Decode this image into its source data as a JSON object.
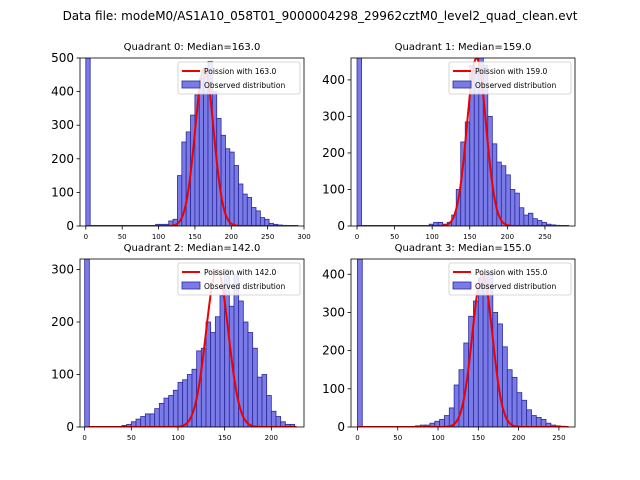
{
  "suptitle": "Data file: modeM0/AS1A10_058T01_9000004298_29962cztM0_level2_quad_clean.evt",
  "colors": {
    "bar_fill": "#7b7be8",
    "bar_edge": "#2a2a9a",
    "poisson_line": "#ee0000",
    "axis": "#000000"
  },
  "chart_data": [
    {
      "type": "bar",
      "title": "Quadrant 0: Median=163.0",
      "median": 163.0,
      "bin_width": 6,
      "bin_starts": [
        0,
        96,
        102,
        108,
        114,
        120,
        126,
        132,
        138,
        144,
        150,
        156,
        162,
        168,
        174,
        180,
        186,
        192,
        198,
        204,
        210,
        216,
        222,
        228,
        234,
        240,
        246,
        252,
        258,
        264,
        270
      ],
      "values": [
        500,
        5,
        5,
        5,
        15,
        20,
        150,
        250,
        280,
        330,
        390,
        440,
        470,
        490,
        400,
        320,
        270,
        230,
        220,
        180,
        125,
        95,
        85,
        55,
        45,
        25,
        20,
        8,
        5,
        3,
        2
      ],
      "poisson_mean": 163.0,
      "poisson_peak": 470,
      "xlim": [
        -8,
        300
      ],
      "ylim": [
        0,
        500
      ],
      "xticks": [
        0,
        50,
        100,
        150,
        200,
        250,
        300
      ],
      "xtick_labels": [
        "0",
        "50",
        "100",
        "150",
        "200",
        "250",
        "300"
      ],
      "yticks": [
        0,
        100,
        200,
        300,
        400,
        500
      ],
      "ytick_labels": [
        "0",
        "100",
        "200",
        "300",
        "400",
        "500"
      ],
      "legend": [
        "Poission with 163.0",
        "Observed distribution"
      ],
      "legend_position": "top-right"
    },
    {
      "type": "bar",
      "title": "Quadrant 1: Median=159.0",
      "median": 159.0,
      "bin_width": 6,
      "bin_starts": [
        0,
        96,
        102,
        108,
        114,
        120,
        126,
        132,
        138,
        144,
        150,
        156,
        162,
        168,
        174,
        180,
        186,
        192,
        198,
        204,
        210,
        216,
        222,
        228,
        234,
        240,
        246,
        252,
        258,
        264
      ],
      "values": [
        460,
        5,
        10,
        10,
        5,
        10,
        30,
        100,
        230,
        285,
        440,
        435,
        480,
        440,
        300,
        225,
        175,
        165,
        140,
        100,
        90,
        50,
        30,
        35,
        20,
        15,
        10,
        5,
        3,
        2
      ],
      "poisson_mean": 159.0,
      "poisson_peak": 460,
      "xlim": [
        -8,
        290
      ],
      "ylim": [
        0,
        460
      ],
      "xticks": [
        0,
        50,
        100,
        150,
        200,
        250
      ],
      "xtick_labels": [
        "0",
        "50",
        "100",
        "150",
        "200",
        "250"
      ],
      "yticks": [
        0,
        100,
        200,
        300,
        400
      ],
      "ytick_labels": [
        "0",
        "100",
        "200",
        "300",
        "400"
      ],
      "legend": [
        "Poission with 159.0",
        "Observed distribution"
      ],
      "legend_position": "top-right"
    },
    {
      "type": "bar",
      "title": "Quadrant 2: Median=142.0",
      "median": 142.0,
      "bin_width": 5,
      "bin_starts": [
        0,
        40,
        45,
        50,
        55,
        60,
        65,
        70,
        75,
        80,
        85,
        90,
        95,
        100,
        105,
        110,
        115,
        120,
        125,
        130,
        135,
        140,
        145,
        150,
        155,
        160,
        165,
        170,
        175,
        180,
        185,
        190,
        195,
        200,
        205,
        210,
        215,
        220
      ],
      "values": [
        320,
        3,
        5,
        10,
        15,
        20,
        25,
        25,
        35,
        45,
        55,
        60,
        70,
        85,
        90,
        100,
        110,
        145,
        150,
        200,
        180,
        210,
        250,
        300,
        230,
        290,
        240,
        200,
        180,
        150,
        95,
        100,
        60,
        30,
        20,
        10,
        5,
        5
      ],
      "poisson_mean": 142.0,
      "poisson_peak": 300,
      "xlim": [
        -5,
        235
      ],
      "ylim": [
        0,
        320
      ],
      "xticks": [
        0,
        50,
        100,
        150,
        200
      ],
      "xtick_labels": [
        "0",
        "50",
        "100",
        "150",
        "200"
      ],
      "yticks": [
        0,
        100,
        200,
        300
      ],
      "ytick_labels": [
        "0",
        "100",
        "200",
        "300"
      ],
      "legend": [
        "Poission with 142.0",
        "Observed distribution"
      ],
      "legend_position": "top-right"
    },
    {
      "type": "bar",
      "title": "Quadrant 3: Median=155.0",
      "median": 155.0,
      "bin_width": 6,
      "bin_starts": [
        0,
        72,
        78,
        84,
        90,
        96,
        102,
        108,
        114,
        120,
        126,
        132,
        138,
        144,
        150,
        156,
        162,
        168,
        174,
        180,
        186,
        192,
        198,
        204,
        210,
        216,
        222,
        228,
        234,
        240,
        246,
        252
      ],
      "values": [
        440,
        3,
        5,
        5,
        10,
        15,
        20,
        30,
        50,
        110,
        150,
        220,
        290,
        330,
        390,
        400,
        405,
        300,
        270,
        210,
        150,
        130,
        90,
        70,
        45,
        30,
        25,
        20,
        10,
        5,
        3,
        2
      ],
      "poisson_mean": 155.0,
      "poisson_peak": 400,
      "xlim": [
        -8,
        270
      ],
      "ylim": [
        0,
        440
      ],
      "xticks": [
        0,
        50,
        100,
        150,
        200,
        250
      ],
      "xtick_labels": [
        "0",
        "50",
        "100",
        "150",
        "200",
        "250"
      ],
      "yticks": [
        0,
        100,
        200,
        300,
        400
      ],
      "ytick_labels": [
        "0",
        "100",
        "200",
        "300",
        "400"
      ],
      "legend": [
        "Poission with 155.0",
        "Observed distribution"
      ],
      "legend_position": "top-right"
    }
  ]
}
